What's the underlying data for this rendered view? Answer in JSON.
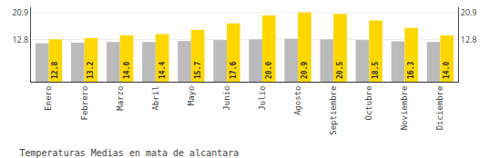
{
  "chart_data": {
    "type": "bar",
    "title": "Temperaturas Medias en mata de alcantara",
    "categories": [
      "Enero",
      "Febrero",
      "Marzo",
      "Abril",
      "Mayo",
      "Junio",
      "Julio",
      "Agosto",
      "Septiembre",
      "Octubre",
      "Noviembre",
      "Diciembre"
    ],
    "series": [
      {
        "color": "#BBBBBB",
        "values": [
          11.6,
          11.8,
          12.0,
          12.0,
          12.3,
          12.6,
          12.8,
          13.0,
          12.8,
          12.6,
          12.2,
          12.0
        ]
      },
      {
        "color": "#FFD700",
        "values": [
          12.8,
          13.2,
          14.0,
          14.4,
          15.7,
          17.6,
          20.0,
          20.9,
          20.5,
          18.5,
          16.3,
          14.0
        ],
        "value_labels": [
          "12.8",
          "13.2",
          "14.0",
          "14.4",
          "15.7",
          "17.6",
          "20.0",
          "20.9",
          "20.5",
          "18.5",
          "16.3",
          "14.0"
        ],
        "data_labels": true
      }
    ],
    "ylim": [
      0,
      22.5
    ],
    "yticks": [
      12.8,
      20.9
    ],
    "y2lim": [
      0,
      22.5
    ],
    "y2ticks": [
      12.8,
      20.9
    ],
    "grid": true
  }
}
